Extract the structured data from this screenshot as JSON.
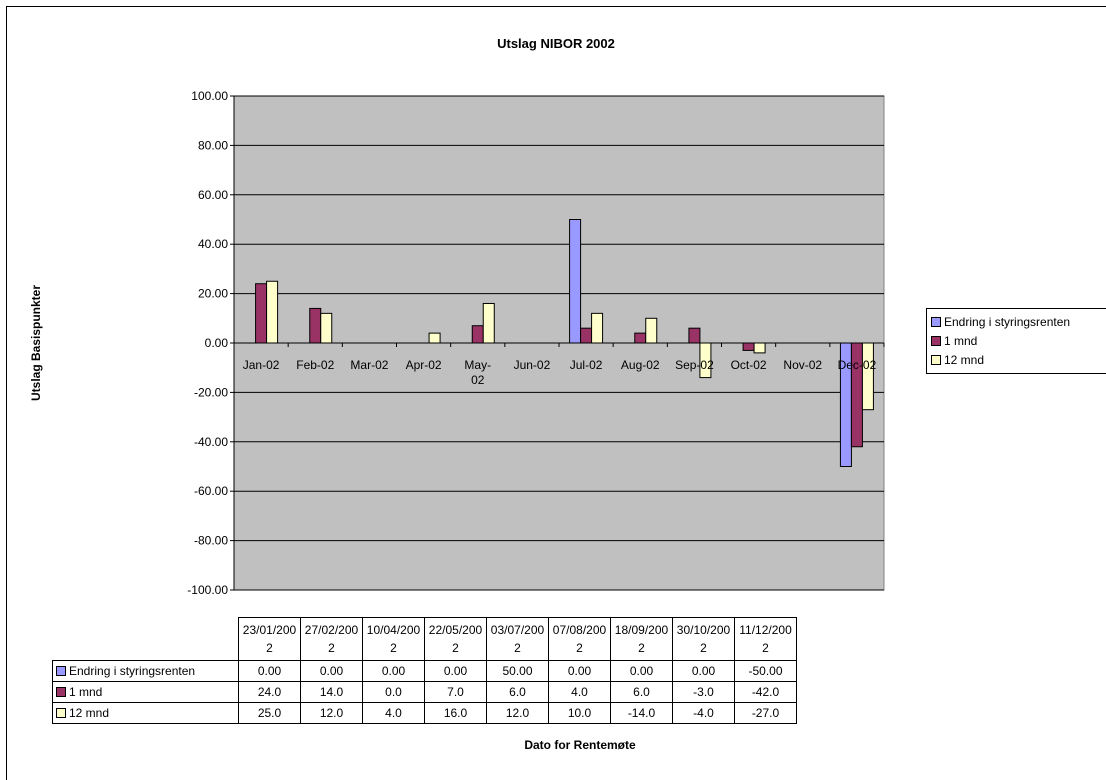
{
  "chart_data": {
    "type": "bar",
    "title": "Utslag NIBOR 2002",
    "xlabel": "Dato for Rentemøte",
    "ylabel": "Utslag Basispunkter",
    "ylim": [
      -100,
      100
    ],
    "yticks": [
      "100.00",
      "80.00",
      "60.00",
      "40.00",
      "20.00",
      "0.00",
      "-20.00",
      "-40.00",
      "-60.00",
      "-80.00",
      "-100.00"
    ],
    "categories": [
      "Jan-02",
      "Feb-02",
      "Mar-02",
      "Apr-02",
      "May-02",
      "Jun-02",
      "Jul-02",
      "Aug-02",
      "Sep-02",
      "Oct-02",
      "Nov-02",
      "Dec-02"
    ],
    "series": [
      {
        "name": "Endring i styringsrenten",
        "color": "#9999ff",
        "values": [
          0,
          0,
          0,
          0,
          0,
          0,
          50,
          0,
          0,
          0,
          0,
          -50
        ]
      },
      {
        "name": "1 mnd",
        "color": "#993366",
        "values": [
          24,
          14,
          0,
          0,
          7,
          0,
          6,
          4,
          6,
          -3,
          0,
          -42
        ]
      },
      {
        "name": "12 mnd",
        "color": "#ffffcc",
        "values": [
          25,
          12,
          0,
          4,
          16,
          0,
          12,
          10,
          -14,
          -4,
          0,
          -27
        ]
      }
    ],
    "plot_background": "#c0c0c0",
    "grid": true,
    "legend": "right",
    "table": {
      "dates": [
        "23/01/2002",
        "27/02/2002",
        "10/04/2002",
        "22/05/2002",
        "03/07/2002",
        "07/08/2002",
        "18/09/2002",
        "30/10/2002",
        "11/12/2002"
      ],
      "rows": [
        {
          "name": "Endring i styringsrenten",
          "color": "#9999ff",
          "values": [
            "0.00",
            "0.00",
            "0.00",
            "0.00",
            "50.00",
            "0.00",
            "0.00",
            "0.00",
            "-50.00"
          ]
        },
        {
          "name": "1 mnd",
          "color": "#993366",
          "values": [
            "24.0",
            "14.0",
            "0.0",
            "7.0",
            "6.0",
            "4.0",
            "6.0",
            "-3.0",
            "-42.0"
          ]
        },
        {
          "name": "12 mnd",
          "color": "#ffffcc",
          "values": [
            "25.0",
            "12.0",
            "4.0",
            "16.0",
            "12.0",
            "10.0",
            "-14.0",
            "-4.0",
            "-27.0"
          ]
        }
      ]
    }
  }
}
